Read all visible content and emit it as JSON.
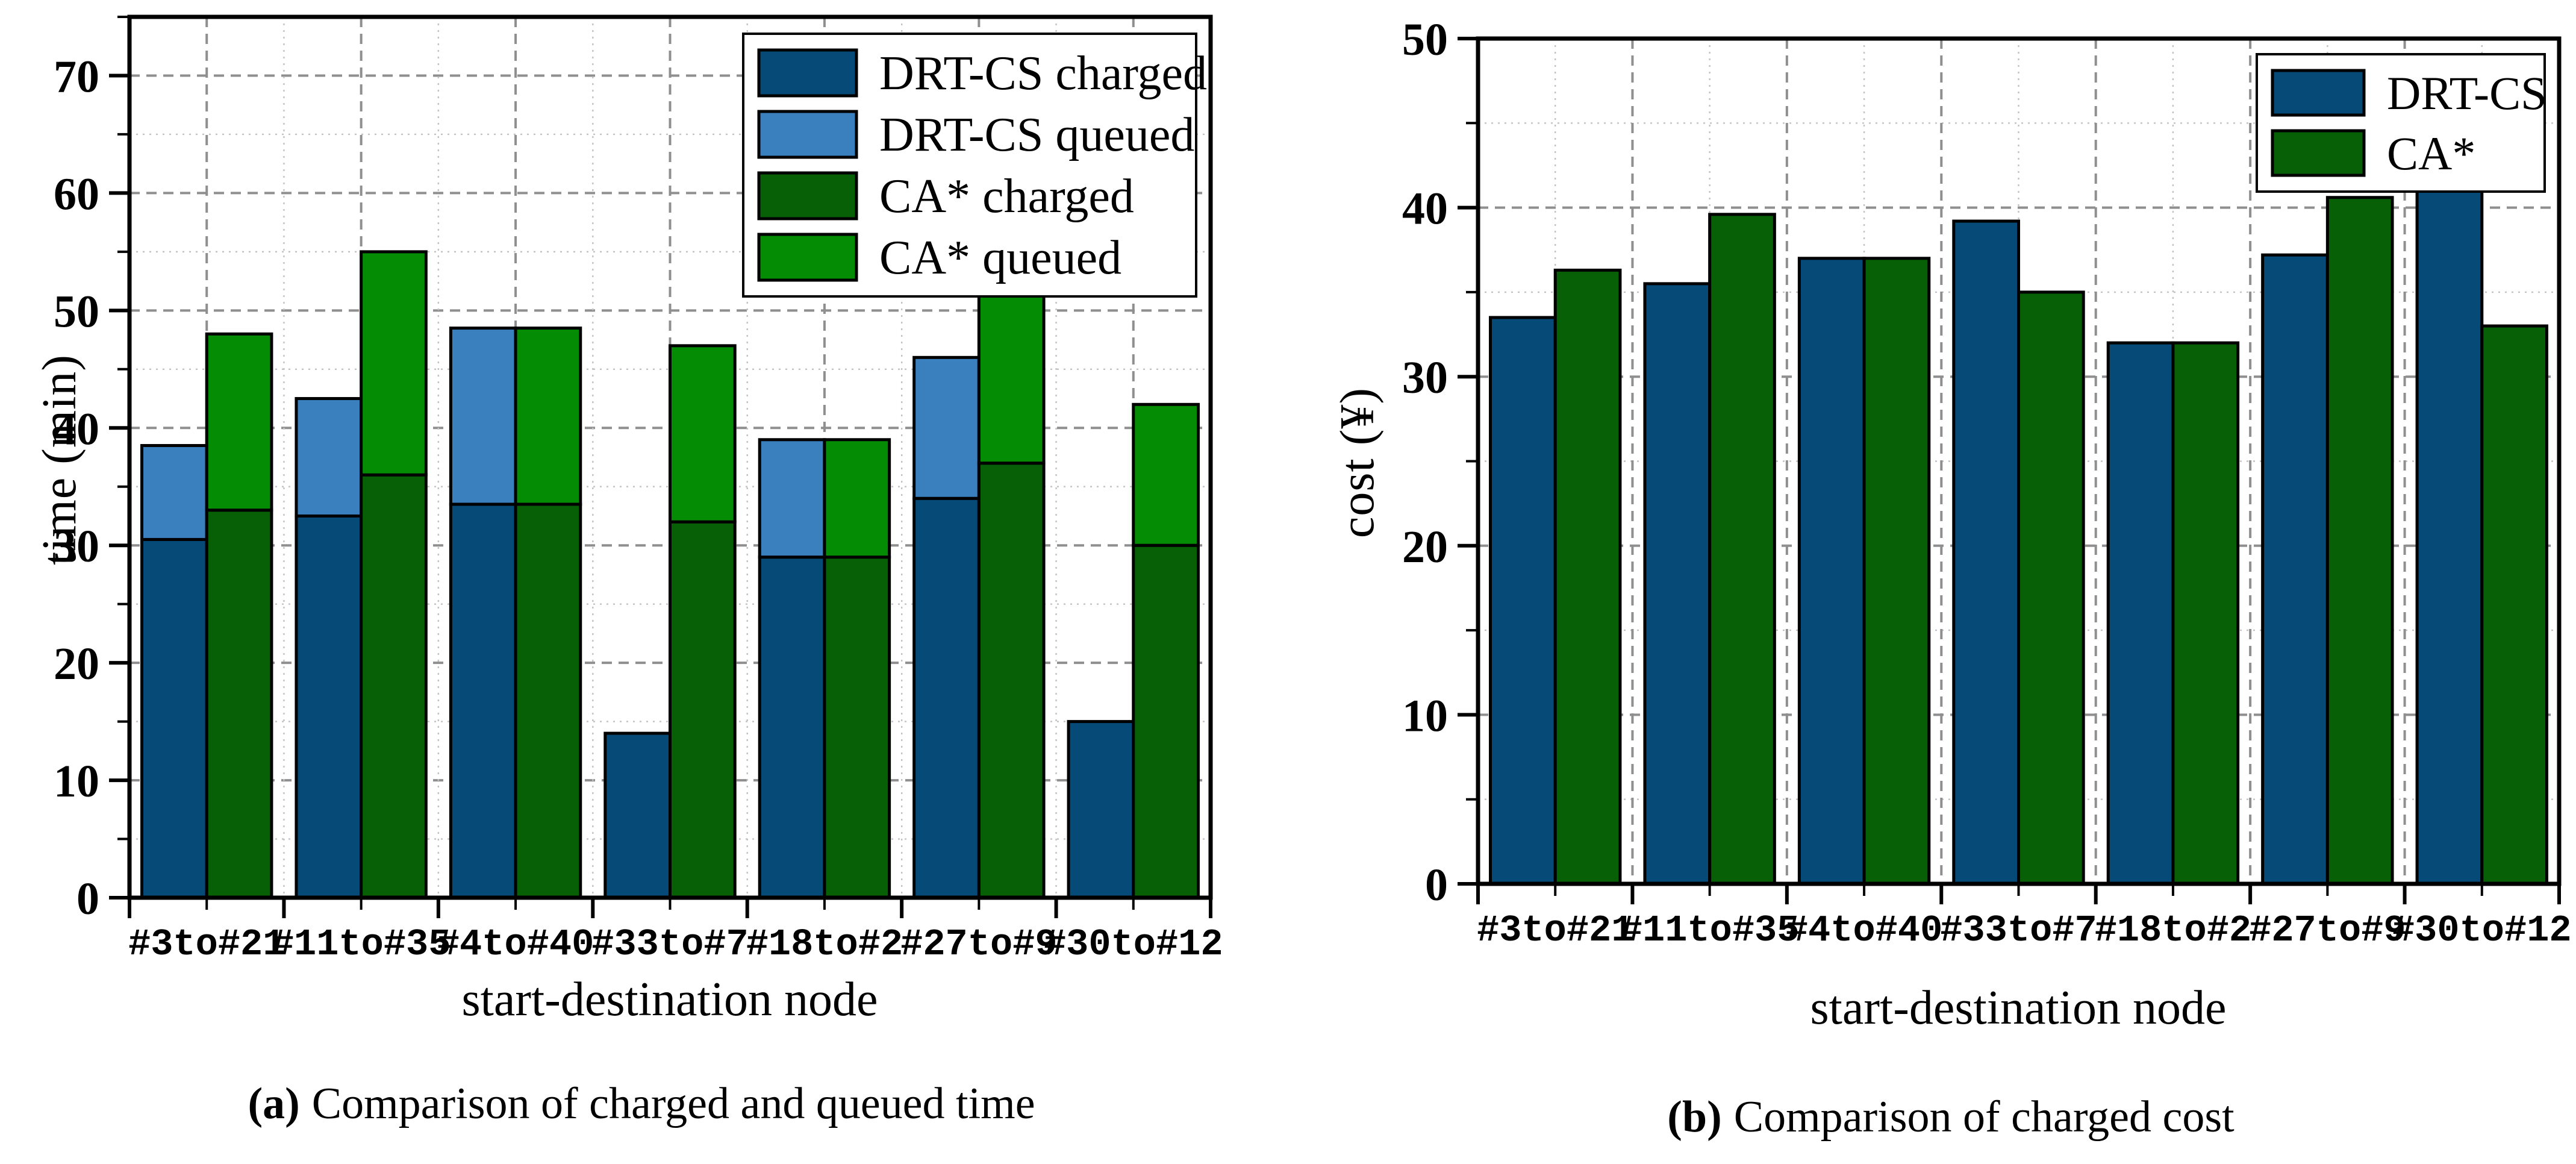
{
  "page": {
    "background": "#ffffff"
  },
  "chart_data": [
    {
      "id": "a",
      "type": "bar",
      "subtype": "stacked",
      "title": "",
      "ylabel": "time (min)",
      "xlabel": "start-destination node",
      "caption_tag": "(a)",
      "caption_text": "Comparison of charged and queued time",
      "categories": [
        "#3to#21",
        "#11to#35",
        "#4to#40",
        "#33to#7",
        "#18to#2",
        "#27to#9",
        "#30to#12"
      ],
      "ylim": [
        0,
        75
      ],
      "ytick_step": 10,
      "yminor_step": 5,
      "grid": "major dashed + minor dotted, on",
      "legend_position": "top-right",
      "vgrid_major": "centers",
      "stacks": [
        {
          "name": "DRT-CS",
          "segments": [
            {
              "name": "DRT-CS charged",
              "color": "#064a77",
              "values": [
                30.5,
                32.5,
                33.5,
                14,
                29,
                34,
                15
              ]
            },
            {
              "name": "DRT-CS queued",
              "color": "#3a80bf",
              "values": [
                8,
                10,
                15,
                0,
                10,
                12,
                0
              ]
            }
          ]
        },
        {
          "name": "CA*",
          "segments": [
            {
              "name": "CA* charged",
              "color": "#076006",
              "values": [
                33,
                36,
                33.5,
                32,
                29,
                37,
                30
              ]
            },
            {
              "name": "CA* queued",
              "color": "#048c04",
              "values": [
                15,
                19,
                15,
                15,
                10,
                15,
                12
              ]
            }
          ]
        }
      ],
      "stack_totals": {
        "DRT-CS": [
          38.5,
          42.5,
          48.5,
          14,
          39,
          46,
          15
        ],
        "CA*": [
          48,
          55,
          48.5,
          47,
          39,
          52,
          42
        ]
      }
    },
    {
      "id": "b",
      "type": "bar",
      "subtype": "grouped",
      "title": "",
      "ylabel": "cost (¥)",
      "xlabel": "start-destination node",
      "caption_tag": "(b)",
      "caption_text": "Comparison of charged cost",
      "categories": [
        "#3to#21",
        "#11to#35",
        "#4to#40",
        "#33to#7",
        "#18to#2",
        "#27to#9",
        "#30to#12"
      ],
      "ylim": [
        0,
        50
      ],
      "ytick_step": 10,
      "yminor_step": 5,
      "grid": "major dashed + minor dotted, on",
      "legend_position": "top-right",
      "vgrid_major": "boundaries",
      "series": [
        {
          "name": "DRT-CS",
          "color": "#064a77",
          "values": [
            33.5,
            35.5,
            37,
            39.2,
            32,
            37.2,
            42
          ]
        },
        {
          "name": "CA*",
          "color": "#076006",
          "values": [
            36.3,
            39.6,
            37,
            35,
            32,
            40.6,
            33
          ]
        }
      ]
    }
  ],
  "colors": {
    "drtcs_charged": "#064a77",
    "drtcs_queued": "#3a80bf",
    "ca_charged": "#076006",
    "ca_queued": "#048c04",
    "grid_major": "#8f8f8f",
    "grid_minor": "#c2c2c2",
    "axis": "#000000"
  }
}
